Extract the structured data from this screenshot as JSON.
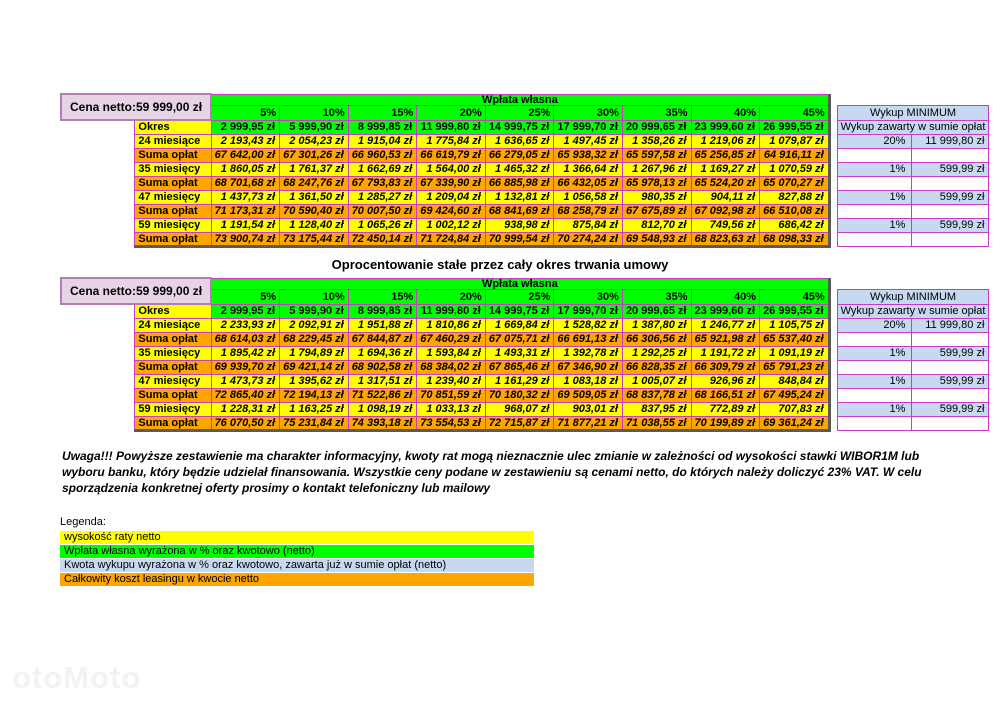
{
  "section_title": "Oprocentowanie stałe przez cały okres trwania umowy",
  "note": "Uwaga!!! Powyższe zestawienie ma charakter informacyjny, kwoty rat mogą nieznacznie ulec zmianie w zależności od wysokości stawki WIBOR1M lub wyboru banku, który będzie udzielał finansowania. Wszystkie ceny podane w zestawieniu są cenami netto, do których należy doliczyć 23% VAT. W celu sporządzenia konkretnej oferty prosimy o kontakt telefoniczny lub mailowy",
  "watermark": "otoMoto",
  "colors": {
    "rata_yellow": "#ffff00",
    "wplata_green": "#00ff00",
    "suma_orange": "#ffa500",
    "wykup_blue": "#c6d9f1",
    "cena_netto_pink": "#e6d4e6",
    "grid_border": "#c93ac9",
    "dark_border": "#5a5a5a"
  },
  "legend": {
    "title": "Legenda:",
    "items": [
      {
        "label": "wysokość raty netto",
        "color": "#ffff00"
      },
      {
        "label": "Wpłata własna wyrażona w % oraz kwotowo (netto)",
        "color": "#00ff00"
      },
      {
        "label": "Kwota wykupu wyrażona w % oraz kwotowo, zawarta już w sumie opłat (netto)",
        "color": "#c6d9f1"
      },
      {
        "label": "Całkowity koszt leasingu w kwocie netto",
        "color": "#ffa500"
      }
    ]
  },
  "tables": [
    {
      "cena_netto_label": "Cena netto:",
      "cena_netto_value": "59 999,00 zł",
      "wplata_header": "Wpłata własna",
      "wykup_header": "Wykup MINIMUM",
      "wykup_subheader": "Wykup zawarty w sumie opłat",
      "percent_headers": [
        "5%",
        "10%",
        "15%",
        "20%",
        "25%",
        "30%",
        "35%",
        "40%",
        "45%"
      ],
      "okres_label": "Okres",
      "okres_values": [
        "2 999,95 zł",
        "5 999,90 zł",
        "8 999,85 zł",
        "11 999,80 zł",
        "14 999,75 zł",
        "17 999,70 zł",
        "20 999,65 zł",
        "23 999,60 zł",
        "26 999,55 zł"
      ],
      "rows": [
        {
          "label": "24 miesiące",
          "type": "rata",
          "values": [
            "2 193,43 zł",
            "2 054,23 zł",
            "1 915,04 zł",
            "1 775,84 zł",
            "1 636,65 zł",
            "1 497,45 zł",
            "1 358,26 zł",
            "1 219,06 zł",
            "1 079,87 zł"
          ],
          "wykup_pct": "20%",
          "wykup_amount": "11 999,80 zł"
        },
        {
          "label": "Suma opłat",
          "type": "suma",
          "values": [
            "67 642,00 zł",
            "67 301,26 zł",
            "66 960,53 zł",
            "66 619,79 zł",
            "66 279,05 zł",
            "65 938,32 zł",
            "65 597,58 zł",
            "65 256,85 zł",
            "64 916,11 zł"
          ],
          "wykup_pct": "",
          "wykup_amount": ""
        },
        {
          "label": "35 miesięcy",
          "type": "rata",
          "values": [
            "1 860,05 zł",
            "1 761,37 zł",
            "1 662,69 zł",
            "1 564,00 zł",
            "1 465,32 zł",
            "1 366,64 zł",
            "1 267,96 zł",
            "1 169,27 zł",
            "1 070,59 zł"
          ],
          "wykup_pct": "1%",
          "wykup_amount": "599,99 zł"
        },
        {
          "label": "Suma opłat",
          "type": "suma",
          "values": [
            "68 701,68 zł",
            "68 247,76 zł",
            "67 793,83 zł",
            "67 339,90 zł",
            "66 885,98 zł",
            "66 432,05 zł",
            "65 978,13 zł",
            "65 524,20 zł",
            "65 070,27 zł"
          ],
          "wykup_pct": "",
          "wykup_amount": ""
        },
        {
          "label": "47 miesięcy",
          "type": "rata",
          "values": [
            "1 437,73 zł",
            "1 361,50 zł",
            "1 285,27 zł",
            "1 209,04 zł",
            "1 132,81 zł",
            "1 056,58 zł",
            "980,35 zł",
            "904,11 zł",
            "827,88 zł"
          ],
          "wykup_pct": "1%",
          "wykup_amount": "599,99 zł"
        },
        {
          "label": "Suma opłat",
          "type": "suma",
          "values": [
            "71 173,31 zł",
            "70 590,40 zł",
            "70 007,50 zł",
            "69 424,60 zł",
            "68 841,69 zł",
            "68 258,79 zł",
            "67 675,89 zł",
            "67 092,98 zł",
            "66 510,08 zł"
          ],
          "wykup_pct": "",
          "wykup_amount": ""
        },
        {
          "label": "59 miesięcy",
          "type": "rata",
          "values": [
            "1 191,54 zł",
            "1 128,40 zł",
            "1 065,26 zł",
            "1 002,12 zł",
            "938,98 zł",
            "875,84 zł",
            "812,70 zł",
            "749,56 zł",
            "686,42 zł"
          ],
          "wykup_pct": "1%",
          "wykup_amount": "599,99 zł"
        },
        {
          "label": "Suma opłat",
          "type": "suma",
          "values": [
            "73 900,74 zł",
            "73 175,44 zł",
            "72 450,14 zł",
            "71 724,84 zł",
            "70 999,54 zł",
            "70 274,24 zł",
            "69 548,93 zł",
            "68 823,63 zł",
            "68 098,33 zł"
          ],
          "wykup_pct": "",
          "wykup_amount": ""
        }
      ]
    },
    {
      "cena_netto_label": "Cena netto:",
      "cena_netto_value": "59 999,00 zł",
      "wplata_header": "Wpłata własna",
      "wykup_header": "Wykup MINIMUM",
      "wykup_subheader": "Wykup zawarty w sumie opłat",
      "percent_headers": [
        "5%",
        "10%",
        "15%",
        "20%",
        "25%",
        "30%",
        "35%",
        "40%",
        "45%"
      ],
      "okres_label": "Okres",
      "okres_values": [
        "2 999,95 zł",
        "5 999,90 zł",
        "8 999,85 zł",
        "11 999,80 zł",
        "14 999,75 zł",
        "17 999,70 zł",
        "20 999,65 zł",
        "23 999,60 zł",
        "26 999,55 zł"
      ],
      "rows": [
        {
          "label": "24 miesiące",
          "type": "rata",
          "values": [
            "2 233,93 zł",
            "2 092,91 zł",
            "1 951,88 zł",
            "1 810,86 zł",
            "1 669,84 zł",
            "1 528,82 zł",
            "1 387,80 zł",
            "1 246,77 zł",
            "1 105,75 zł"
          ],
          "wykup_pct": "20%",
          "wykup_amount": "11 999,80 zł"
        },
        {
          "label": "Suma opłat",
          "type": "suma",
          "values": [
            "68 614,03 zł",
            "68 229,45 zł",
            "67 844,87 zł",
            "67 460,29 zł",
            "67 075,71 zł",
            "66 691,13 zł",
            "66 306,56 zł",
            "65 921,98 zł",
            "65 537,40 zł"
          ],
          "wykup_pct": "",
          "wykup_amount": ""
        },
        {
          "label": "35 miesięcy",
          "type": "rata",
          "values": [
            "1 895,42 zł",
            "1 794,89 zł",
            "1 694,36 zł",
            "1 593,84 zł",
            "1 493,31 zł",
            "1 392,78 zł",
            "1 292,25 zł",
            "1 191,72 zł",
            "1 091,19 zł"
          ],
          "wykup_pct": "1%",
          "wykup_amount": "599,99 zł"
        },
        {
          "label": "Suma opłat",
          "type": "suma",
          "values": [
            "69 939,70 zł",
            "69 421,14 zł",
            "68 902,58 zł",
            "68 384,02 zł",
            "67 865,46 zł",
            "67 346,90 zł",
            "66 828,35 zł",
            "66 309,79 zł",
            "65 791,23 zł"
          ],
          "wykup_pct": "",
          "wykup_amount": ""
        },
        {
          "label": "47 miesięcy",
          "type": "rata",
          "values": [
            "1 473,73 zł",
            "1 395,62 zł",
            "1 317,51 zł",
            "1 239,40 zł",
            "1 161,29 zł",
            "1 083,18 zł",
            "1 005,07 zł",
            "926,96 zł",
            "848,84 zł"
          ],
          "wykup_pct": "1%",
          "wykup_amount": "599,99 zł"
        },
        {
          "label": "Suma opłat",
          "type": "suma",
          "values": [
            "72 865,40 zł",
            "72 194,13 zł",
            "71 522,86 zł",
            "70 851,59 zł",
            "70 180,32 zł",
            "69 509,05 zł",
            "68 837,78 zł",
            "68 166,51 zł",
            "67 495,24 zł"
          ],
          "wykup_pct": "",
          "wykup_amount": ""
        },
        {
          "label": "59 miesięcy",
          "type": "rata",
          "values": [
            "1 228,31 zł",
            "1 163,25 zł",
            "1 098,19 zł",
            "1 033,13 zł",
            "968,07 zł",
            "903,01 zł",
            "837,95 zł",
            "772,89 zł",
            "707,83 zł"
          ],
          "wykup_pct": "1%",
          "wykup_amount": "599,99 zł"
        },
        {
          "label": "Suma opłat",
          "type": "suma",
          "values": [
            "76 070,50 zł",
            "75 231,84 zł",
            "74 393,18 zł",
            "73 554,53 zł",
            "72 715,87 zł",
            "71 877,21 zł",
            "71 038,55 zł",
            "70 199,89 zł",
            "69 361,24 zł"
          ],
          "wykup_pct": "",
          "wykup_amount": ""
        }
      ]
    }
  ]
}
